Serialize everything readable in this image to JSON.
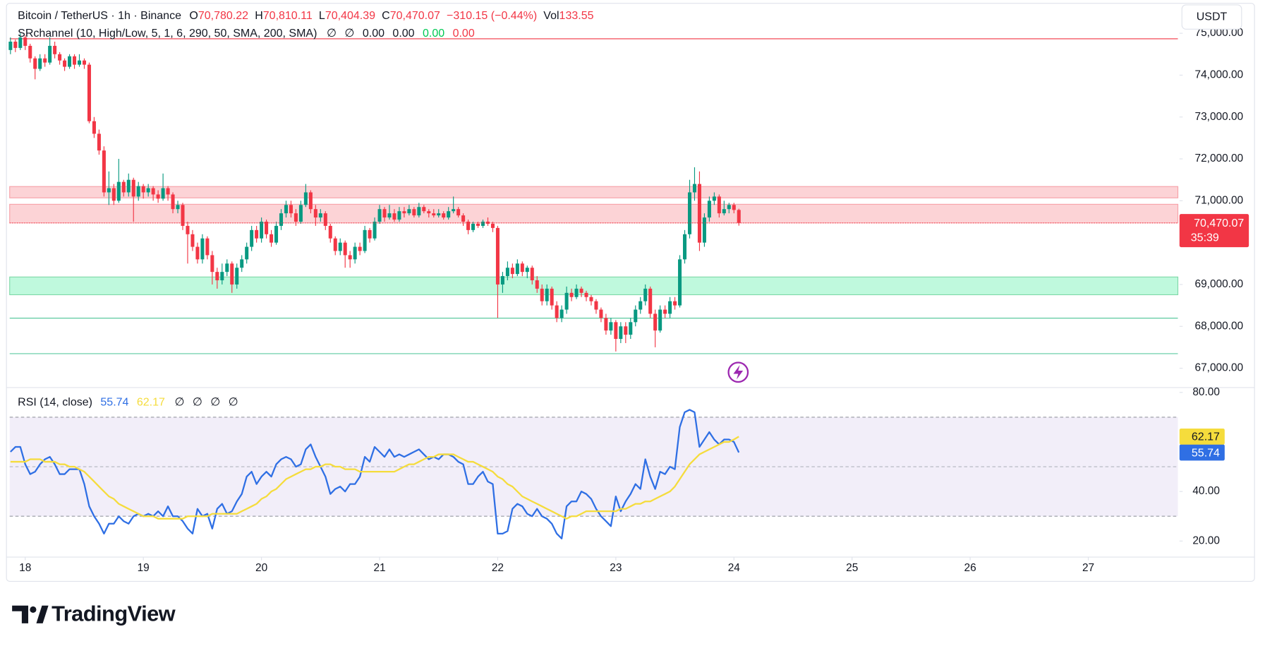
{
  "chart_data": {
    "type": "candlestick",
    "title": "Bitcoin / TetherUS · 1h · Binance",
    "ohlc_legend": [
      {
        "label": "O",
        "value": "70,780.22"
      },
      {
        "label": "H",
        "value": "70,810.11"
      },
      {
        "label": "L",
        "value": "70,404.39"
      },
      {
        "label": "C",
        "value": "70,470.07"
      }
    ],
    "change": "−310.15 (−0.44%)",
    "volume_label": "Vol",
    "volume": "133.55",
    "currency": "USDT",
    "up_color": "#089981",
    "down_color": "#f23645",
    "open": [
      74600,
      74800,
      74650,
      74900,
      74700,
      74400,
      74150,
      74400,
      74300,
      74700,
      74500,
      74350,
      74200,
      74450,
      74250,
      74350,
      74250,
      72900,
      72600,
      72200,
      71200,
      71300,
      71000,
      71450,
      71200,
      71500,
      71100,
      71350,
      71200,
      71300,
      71150,
      71050,
      71300,
      71150,
      70800,
      70900,
      70400,
      70200,
      69900,
      69600,
      70100,
      69700,
      69300,
      69100,
      69300,
      69500,
      69000,
      69400,
      69600,
      69900,
      70300,
      70100,
      70500,
      70200,
      70000,
      70400,
      70700,
      70900,
      70700,
      70500,
      70900,
      71200,
      70800,
      70600,
      70700,
      70400,
      70100,
      69800,
      70000,
      69700,
      69600,
      69900,
      69800,
      70300,
      70100,
      70500,
      70800,
      70600,
      70700,
      70550,
      70750,
      70700,
      70800,
      70650,
      70850,
      70750,
      70700,
      70650,
      70700,
      70600,
      70750,
      70800,
      70650,
      70500,
      70300,
      70450,
      70400,
      70500,
      70450,
      70350,
      69000,
      69200,
      69400,
      69250,
      69500,
      69300,
      69400,
      69100,
      68900,
      68600,
      68900,
      68500,
      68200,
      68400,
      68800,
      68700,
      68900,
      68800,
      68700,
      68600,
      68400,
      68200,
      67900,
      68100,
      67700,
      68000,
      67800,
      68100,
      68400,
      68600,
      68900,
      68300,
      67900,
      68400,
      68300,
      68600,
      68500,
      69600,
      70200,
      71200,
      71400,
      70000,
      70600,
      71000,
      71100,
      70700,
      70800,
      70900,
      70780.22
    ],
    "high": [
      74900,
      74850,
      75000,
      74950,
      74750,
      74450,
      74500,
      74500,
      74900,
      74800,
      74550,
      74400,
      74500,
      74500,
      74500,
      74400,
      74300,
      73000,
      72700,
      72300,
      71700,
      71400,
      72000,
      71500,
      71650,
      71550,
      71450,
      71400,
      71400,
      71350,
      71250,
      71650,
      71350,
      71200,
      71000,
      70950,
      70500,
      70300,
      70000,
      70200,
      70150,
      69800,
      69400,
      69500,
      69600,
      69550,
      69500,
      69700,
      70000,
      70400,
      70400,
      70600,
      70550,
      70300,
      70500,
      70800,
      71000,
      71000,
      70800,
      71000,
      71400,
      71250,
      70900,
      70800,
      70750,
      70450,
      70150,
      70100,
      70050,
      69800,
      70000,
      70000,
      70400,
      70350,
      70600,
      70900,
      70850,
      70900,
      70800,
      70850,
      70850,
      70900,
      70850,
      70950,
      70900,
      70800,
      70800,
      70800,
      70750,
      70850,
      71100,
      70850,
      70700,
      70550,
      70500,
      70500,
      70550,
      70600,
      70500,
      70400,
      69300,
      69550,
      69500,
      69600,
      69550,
      69450,
      69450,
      69200,
      69000,
      69000,
      68950,
      68600,
      68500,
      68950,
      68900,
      69000,
      68950,
      68850,
      68750,
      68650,
      68450,
      68300,
      68200,
      68150,
      68100,
      68100,
      68200,
      68500,
      68700,
      69000,
      68950,
      68400,
      68500,
      68500,
      68700,
      68700,
      69700,
      70300,
      71500,
      71800,
      71700,
      70700,
      71100,
      71200,
      71150,
      71000,
      70950,
      70950,
      70810.11
    ],
    "low": [
      74500,
      74550,
      74600,
      74600,
      74300,
      73900,
      74100,
      74200,
      74250,
      74400,
      74250,
      74100,
      74150,
      74150,
      74200,
      74150,
      72850,
      72500,
      72100,
      71100,
      70900,
      70900,
      70950,
      71100,
      71100,
      70500,
      71000,
      71050,
      71100,
      71000,
      70950,
      71000,
      71000,
      70700,
      70700,
      70300,
      69500,
      69800,
      69500,
      69500,
      69600,
      69000,
      68900,
      69000,
      69200,
      68800,
      68900,
      69300,
      69500,
      69800,
      70000,
      70000,
      70100,
      69900,
      69950,
      70300,
      70600,
      70600,
      70400,
      70450,
      70850,
      70700,
      70400,
      70500,
      70300,
      70000,
      69700,
      69700,
      69400,
      69400,
      69500,
      69700,
      69750,
      70000,
      70050,
      70450,
      70500,
      70550,
      70500,
      70500,
      70600,
      70650,
      70600,
      70600,
      70700,
      70600,
      70600,
      70600,
      70550,
      70550,
      70700,
      70600,
      70400,
      70200,
      70250,
      70350,
      70350,
      70400,
      70250,
      68200,
      68800,
      69100,
      69150,
      69200,
      69200,
      69150,
      69000,
      68800,
      68500,
      68500,
      68400,
      68100,
      68100,
      68300,
      68600,
      68650,
      68700,
      68600,
      68500,
      68300,
      68100,
      67800,
      67800,
      67400,
      67600,
      67600,
      67700,
      68000,
      68300,
      68500,
      68200,
      67500,
      67850,
      68200,
      68200,
      68400,
      68450,
      69500,
      70100,
      71000,
      69800,
      69900,
      70500,
      70900,
      70600,
      70650,
      70700,
      70700,
      70404.39
    ],
    "close": [
      74800,
      74650,
      74900,
      74700,
      74400,
      74150,
      74400,
      74300,
      74700,
      74500,
      74350,
      74200,
      74450,
      74250,
      74350,
      74250,
      72900,
      72600,
      72200,
      71200,
      71300,
      71000,
      71450,
      71200,
      71500,
      71100,
      71350,
      71200,
      71300,
      71150,
      71050,
      71300,
      71150,
      70800,
      70900,
      70400,
      70200,
      69900,
      69600,
      70100,
      69700,
      69300,
      69100,
      69300,
      69500,
      69000,
      69400,
      69600,
      69900,
      70300,
      70100,
      70500,
      70200,
      70000,
      70400,
      70700,
      70900,
      70700,
      70500,
      70900,
      71200,
      70800,
      70600,
      70700,
      70400,
      70100,
      69800,
      70000,
      69700,
      69600,
      69900,
      69800,
      70300,
      70100,
      70500,
      70800,
      70600,
      70700,
      70550,
      70750,
      70700,
      70800,
      70650,
      70850,
      70750,
      70700,
      70650,
      70700,
      70600,
      70750,
      70800,
      70650,
      70500,
      70300,
      70450,
      70400,
      70500,
      70450,
      70350,
      69000,
      69200,
      69400,
      69250,
      69500,
      69300,
      69400,
      69100,
      68900,
      68600,
      68900,
      68500,
      68200,
      68400,
      68800,
      68700,
      68900,
      68800,
      68700,
      68600,
      68400,
      68200,
      67900,
      68100,
      67700,
      68000,
      67800,
      68100,
      68400,
      68600,
      68900,
      68300,
      67900,
      68400,
      68300,
      68600,
      68500,
      69600,
      70200,
      71200,
      71400,
      70000,
      70600,
      71000,
      71100,
      70700,
      70800,
      70900,
      70780.22,
      70470.07
    ],
    "xlim": [
      -0.16,
      237.2
    ],
    "xticks": [
      {
        "value": 3,
        "label": "18"
      },
      {
        "value": 27,
        "label": "19"
      },
      {
        "value": 51,
        "label": "20"
      },
      {
        "value": 75,
        "label": "21"
      },
      {
        "value": 99,
        "label": "22"
      },
      {
        "value": 123,
        "label": "23"
      },
      {
        "value": 147,
        "label": "24"
      },
      {
        "value": 171,
        "label": "25"
      },
      {
        "value": 195,
        "label": "26"
      },
      {
        "value": 219,
        "label": "27"
      }
    ],
    "ylim": [
      66576,
      75118
    ],
    "yticks": [
      {
        "value": 67000,
        "label": "67,000.00"
      },
      {
        "value": 68000,
        "label": "68,000.00"
      },
      {
        "value": 69000,
        "label": "69,000.00"
      },
      {
        "value": 71000,
        "label": "71,000.00"
      },
      {
        "value": 72000,
        "label": "72,000.00"
      },
      {
        "value": 73000,
        "label": "73,000.00"
      },
      {
        "value": 74000,
        "label": "74,000.00"
      },
      {
        "value": 75000,
        "label": "75,000.00"
      }
    ],
    "last_price_label": "70,470.07",
    "countdown": "35:39",
    "sr_channel": {
      "label": "SRchannel (10, High/Low, 5, 1, 6, 290, 50, SMA, 200, SMA)",
      "values": [
        "∅",
        "∅",
        "0.00",
        "0.00",
        "0.00",
        "0.00"
      ],
      "value_colors": [
        "#131722",
        "#131722",
        "#131722",
        "#131722",
        "#00c853",
        "#f23645"
      ],
      "zones": [
        {
          "low": 71069,
          "high": 71339,
          "fill": "rgba(242,54,69,0.22)",
          "stroke": "#f7a1a8"
        },
        {
          "low": 70471,
          "high": 70915,
          "fill": "rgba(242,54,69,0.22)",
          "stroke": "#f7a1a8"
        },
        {
          "low": 68755,
          "high": 69179,
          "fill": "rgba(0,230,118,0.25)",
          "stroke": "#7fd8a8"
        }
      ],
      "lines": [
        {
          "value": 74868,
          "color": "#f23645"
        },
        {
          "value": 68196,
          "color": "#5cc9a0"
        },
        {
          "value": 67347,
          "color": "#5cc9a0"
        }
      ]
    },
    "rsi": {
      "label": "RSI (14, close)",
      "ylim": [
        13.5,
        81.3
      ],
      "yticks": [
        {
          "value": 20,
          "label": "20.00"
        },
        {
          "value": 40,
          "label": "40.00"
        },
        {
          "value": 80,
          "label": "80.00"
        }
      ],
      "bands": [
        30,
        70
      ],
      "midline": 50,
      "band_fill": "rgba(126,87,194,0.1)",
      "series": [
        {
          "color": "#2f6fe4",
          "value_label": "55.74",
          "values": [
            56,
            58,
            58,
            51,
            47,
            48,
            51,
            53,
            54,
            51,
            47,
            47,
            49,
            49,
            49,
            43,
            34,
            30,
            27,
            23,
            27,
            27,
            30,
            28,
            27,
            30,
            31,
            30,
            31,
            30,
            32,
            30,
            34,
            30,
            30,
            28,
            25,
            23,
            33,
            30,
            31,
            25,
            33,
            35,
            31,
            32,
            36,
            39,
            46,
            48,
            43,
            46,
            48,
            46,
            51,
            53,
            54,
            53,
            50,
            51,
            57,
            59,
            54,
            50,
            46,
            39,
            41,
            42,
            40,
            43,
            43,
            46,
            54,
            52,
            58,
            56,
            54,
            57,
            54,
            55,
            54,
            55,
            56,
            57,
            55,
            53,
            54,
            53,
            55,
            55,
            54,
            52,
            51,
            43,
            43,
            46,
            48,
            44,
            43,
            23,
            23,
            24,
            33,
            35,
            34,
            31,
            30,
            33,
            30,
            29,
            27,
            23,
            21,
            34,
            36,
            36,
            40,
            39,
            37,
            33,
            30,
            28,
            26,
            38,
            32,
            36,
            39,
            43,
            41,
            53,
            46,
            41,
            48,
            47,
            50,
            49,
            66,
            72,
            73,
            72,
            58,
            61,
            64,
            61,
            59,
            61,
            61,
            60,
            55.74
          ]
        },
        {
          "color": "#f5dc3c",
          "value_label": "62.17",
          "values": [
            52,
            52,
            52,
            52,
            53,
            53,
            53,
            52,
            52,
            52,
            51,
            51,
            50,
            50,
            49,
            48,
            46,
            44,
            42,
            40,
            38,
            37,
            35,
            34,
            33,
            32,
            31,
            30,
            30,
            30,
            29,
            29,
            29,
            29,
            29,
            29,
            30,
            30,
            30,
            30,
            30,
            31,
            31,
            31,
            31,
            31,
            31,
            32,
            33,
            34,
            35,
            37,
            38,
            40,
            41,
            43,
            45,
            46,
            47,
            48,
            49,
            49,
            50,
            50,
            51,
            51,
            50,
            50,
            49,
            49,
            49,
            48,
            48,
            48,
            48,
            48,
            48,
            48,
            48,
            49,
            50,
            51,
            51,
            52,
            53,
            54,
            54,
            55,
            55,
            55,
            55,
            54,
            53,
            52,
            52,
            51,
            50,
            49,
            48,
            46,
            45,
            43,
            42,
            40,
            38,
            37,
            36,
            35,
            34,
            33,
            32,
            31,
            30,
            29,
            30,
            30,
            31,
            32,
            32,
            32,
            32,
            32,
            32,
            32,
            33,
            33,
            34,
            35,
            35,
            36,
            36,
            37,
            38,
            39,
            40,
            42,
            45,
            48,
            51,
            53,
            55,
            56,
            57,
            58,
            59,
            60,
            60,
            61,
            62.17
          ]
        }
      ],
      "legend_extras": [
        "∅",
        "∅",
        "∅",
        "∅"
      ]
    },
    "brand": "TradingView"
  }
}
